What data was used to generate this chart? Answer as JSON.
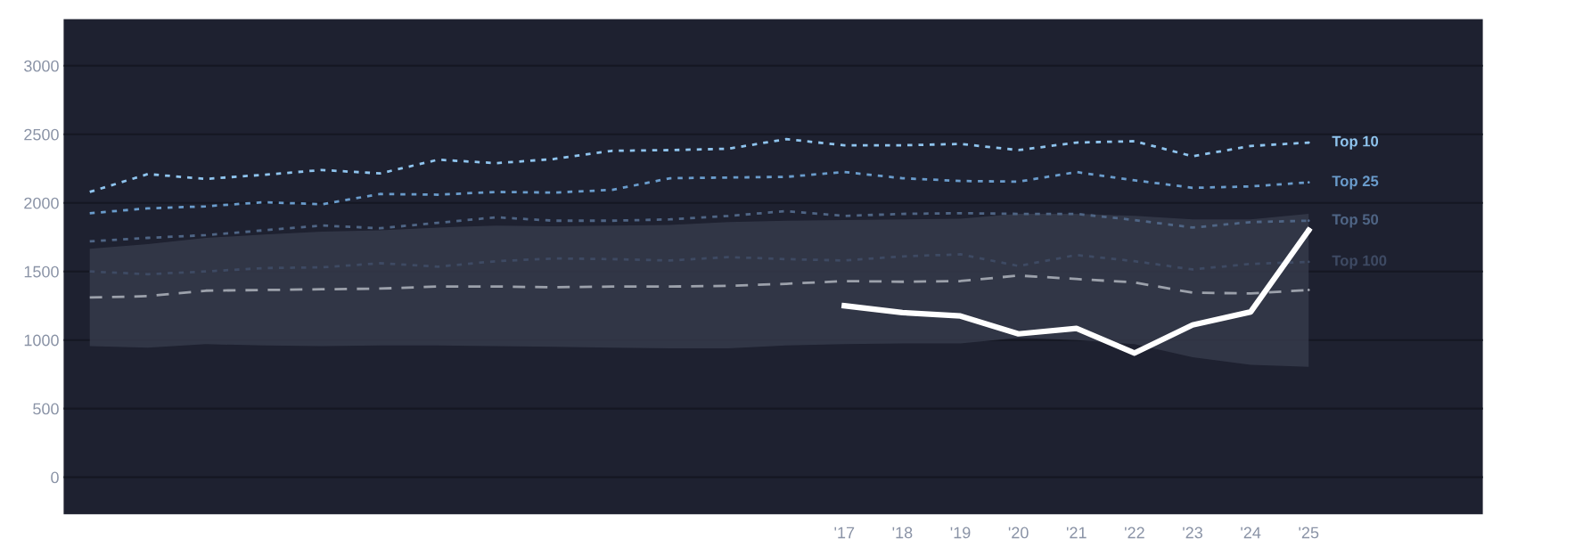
{
  "chart_data": {
    "type": "line",
    "categories": [
      null,
      null,
      null,
      null,
      null,
      null,
      null,
      null,
      null,
      null,
      null,
      null,
      null,
      "'17",
      "'18",
      "'19",
      "'20",
      "'21",
      "'22",
      "'23",
      "'24",
      "'25"
    ],
    "ylim": [
      -270,
      3340
    ],
    "yticks": [
      0,
      500,
      1000,
      1500,
      2000,
      2500,
      3000
    ],
    "grid": "y",
    "legend": false,
    "marker": "none",
    "series": [
      {
        "name": "Top 10",
        "color": "#8fc4ee",
        "line_style": "dotted",
        "values": [
          2080,
          2210,
          2175,
          2205,
          2240,
          2215,
          2315,
          2290,
          2320,
          2380,
          2385,
          2395,
          2465,
          2420,
          2420,
          2430,
          2385,
          2440,
          2450,
          2340,
          2415,
          2440
        ]
      },
      {
        "name": "Top 25",
        "color": "#6a9ccc",
        "line_style": "dotted",
        "values": [
          1925,
          1960,
          1975,
          2005,
          1990,
          2065,
          2060,
          2080,
          2075,
          2095,
          2180,
          2185,
          2190,
          2225,
          2180,
          2160,
          2155,
          2225,
          2165,
          2110,
          2120,
          2150
        ]
      },
      {
        "name": "Top 50",
        "color": "#4f6585",
        "line_style": "dotted",
        "values": [
          1720,
          1745,
          1765,
          1800,
          1835,
          1815,
          1855,
          1895,
          1870,
          1870,
          1880,
          1905,
          1940,
          1905,
          1920,
          1925,
          1920,
          1920,
          1875,
          1820,
          1860,
          1870
        ]
      },
      {
        "name": "Top 100",
        "color": "#3e4a63",
        "line_style": "dotted",
        "values": [
          1500,
          1480,
          1500,
          1525,
          1530,
          1560,
          1535,
          1575,
          1595,
          1590,
          1580,
          1605,
          1590,
          1580,
          1610,
          1625,
          1540,
          1620,
          1575,
          1515,
          1555,
          1570
        ]
      },
      {
        "color": "#9ca1ab",
        "line_style": "dashed",
        "values": [
          1310,
          1320,
          1360,
          1365,
          1370,
          1375,
          1390,
          1390,
          1385,
          1390,
          1390,
          1395,
          1410,
          1430,
          1425,
          1430,
          1470,
          1445,
          1420,
          1345,
          1340,
          1365
        ],
        "lower": [
          955,
          945,
          970,
          960,
          955,
          960,
          960,
          955,
          950,
          945,
          940,
          940,
          960,
          970,
          975,
          975,
          1015,
          1000,
          970,
          875,
          820,
          805
        ],
        "upper": [
          1665,
          1700,
          1745,
          1770,
          1790,
          1800,
          1820,
          1835,
          1830,
          1835,
          1840,
          1860,
          1870,
          1875,
          1880,
          1885,
          1920,
          1920,
          1905,
          1880,
          1880,
          1920
        ]
      },
      {
        "color": "#ffffff",
        "line_style": "solid",
        "values": [
          null,
          null,
          null,
          null,
          null,
          null,
          null,
          null,
          null,
          null,
          null,
          null,
          null,
          1250,
          1200,
          1175,
          1045,
          1085,
          905,
          1110,
          1205,
          1800
        ]
      }
    ]
  }
}
